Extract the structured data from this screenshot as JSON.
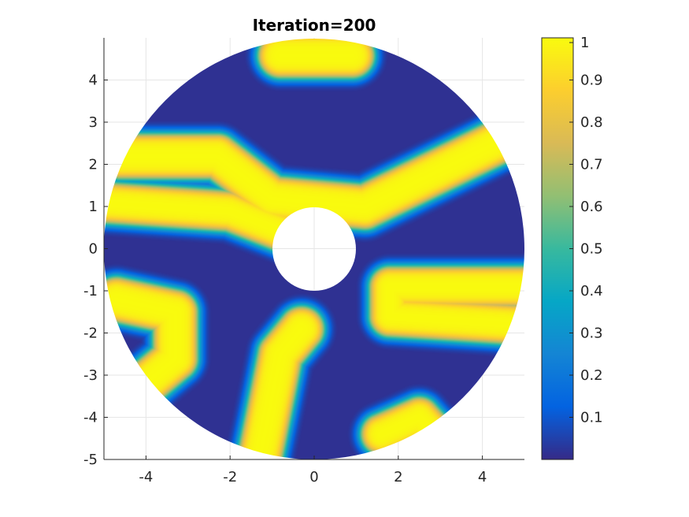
{
  "chart_data": {
    "type": "heatmap",
    "title": "Iteration=200",
    "xlabel": "",
    "ylabel": "",
    "xlim": [
      -5,
      5
    ],
    "ylim": [
      -5,
      5
    ],
    "xticks": [
      -4,
      -2,
      0,
      2,
      4
    ],
    "xtick_labels": [
      "-4",
      "-2",
      "0",
      "2",
      "4"
    ],
    "yticks": [
      4,
      3,
      2,
      1,
      0,
      -1,
      -2,
      -3,
      -4,
      -5
    ],
    "ytick_labels": [
      "4",
      "3",
      "2",
      "1",
      "0",
      "-1",
      "-2",
      "-3",
      "-4",
      "-5"
    ],
    "grid": true,
    "domain": {
      "shape": "annulus",
      "center": [
        0,
        0
      ],
      "inner_radius": 1,
      "outer_radius": 5
    },
    "colormap": "parula",
    "colormap_stops": [
      "#352a87",
      "#0363e1",
      "#1485d4",
      "#06a7c6",
      "#38b99e",
      "#92bf73",
      "#d9ba56",
      "#fcce2e",
      "#f9fb0e"
    ],
    "colorbar": {
      "range": [
        0,
        1
      ],
      "ticks": [
        1,
        0.9,
        0.8,
        0.7,
        0.6,
        0.5,
        0.4,
        0.3,
        0.2,
        0.1
      ],
      "tick_labels": [
        "1",
        "0.9",
        "0.8",
        "0.7",
        "0.6",
        "0.5",
        "0.4",
        "0.3",
        "0.2",
        "0.1"
      ]
    },
    "field": {
      "description_of_high_regions": "high (~1) bands; low (~0) background",
      "bands": [
        {
          "points": [
            [
              -0.8,
              4.6
            ],
            [
              0.9,
              4.6
            ]
          ],
          "width": 0.55
        },
        {
          "points": [
            [
              -4.6,
              2.2
            ],
            [
              -2.3,
              2.2
            ],
            [
              -1.0,
              1.2
            ],
            [
              1.2,
              1.0
            ],
            [
              4.9,
              2.8
            ]
          ],
          "width": 0.55
        },
        {
          "points": [
            [
              -5.0,
              1.1
            ],
            [
              -2.0,
              0.9
            ],
            [
              -0.2,
              0.2
            ]
          ],
          "width": 0.5
        },
        {
          "points": [
            [
              -4.7,
              -1.2
            ],
            [
              -3.3,
              -1.5
            ],
            [
              -3.3,
              -2.6
            ],
            [
              -4.5,
              -3.6
            ]
          ],
          "width": 0.55
        },
        {
          "points": [
            [
              -1.3,
              -5.0
            ],
            [
              -0.8,
              -2.5
            ],
            [
              -0.3,
              -1.9
            ]
          ],
          "width": 0.55
        },
        {
          "points": [
            [
              5.0,
              -0.9
            ],
            [
              1.8,
              -0.9
            ],
            [
              1.8,
              -1.6
            ],
            [
              5.0,
              -1.8
            ]
          ],
          "width": 0.5
        },
        {
          "points": [
            [
              1.6,
              -4.4
            ],
            [
              2.5,
              -4.0
            ],
            [
              3.3,
              -4.9
            ]
          ],
          "width": 0.5
        }
      ]
    }
  }
}
